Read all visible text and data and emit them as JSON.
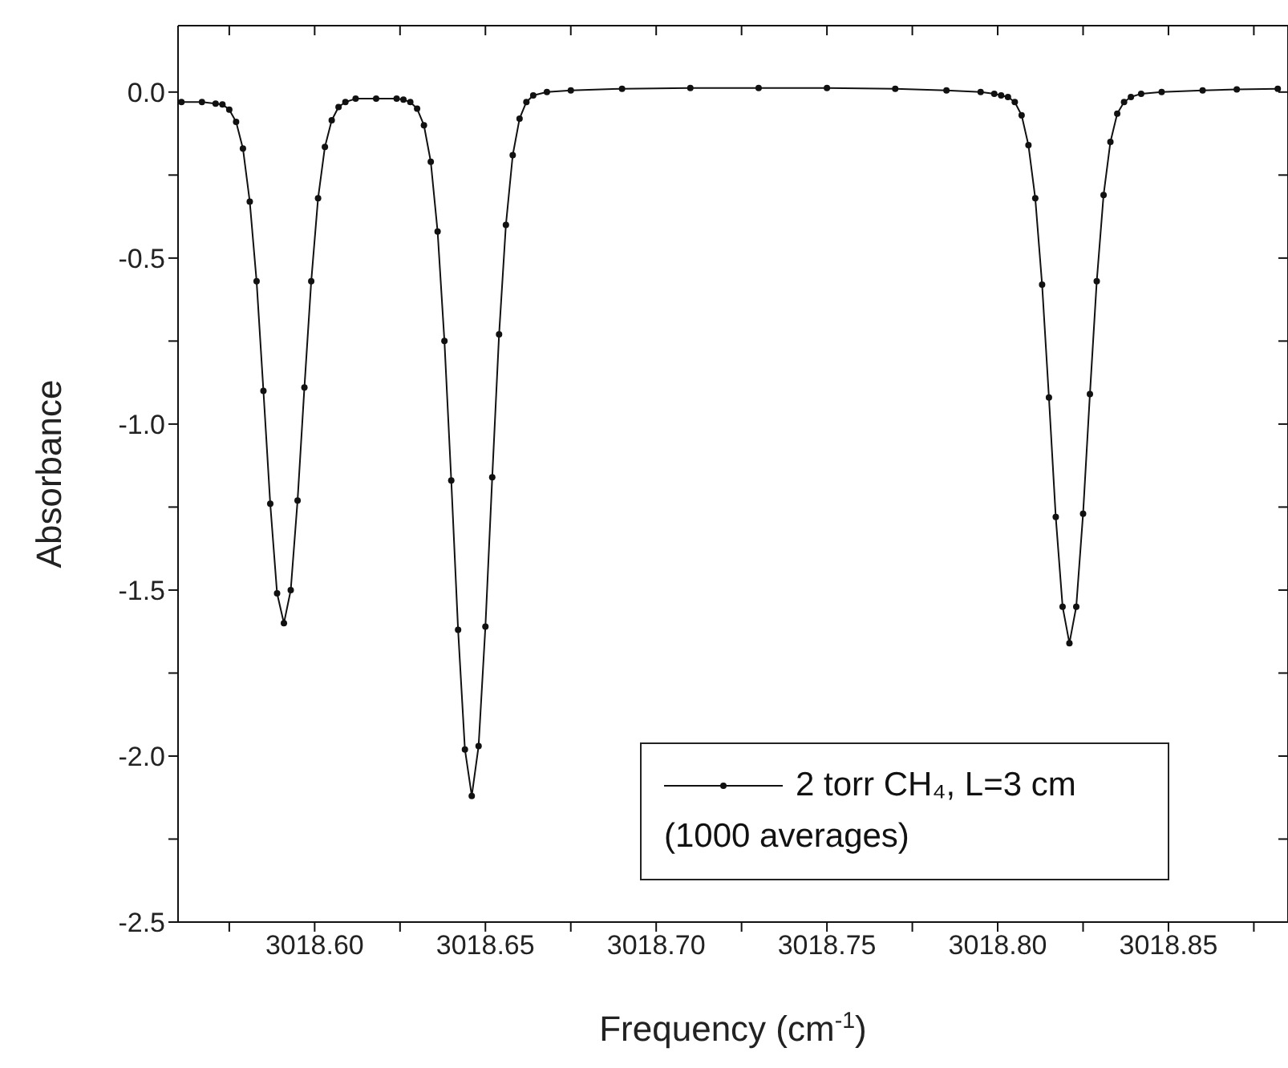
{
  "chart_data": {
    "type": "line",
    "xlabel": "Frequency (cm$^{-1}$)",
    "ylabel": "Absorbance",
    "xlim": [
      3018.56,
      3018.885
    ],
    "xticks": [
      {
        "value": 3018.6,
        "label": "3018.60"
      },
      {
        "value": 3018.65,
        "label": "3018.65"
      },
      {
        "value": 3018.7,
        "label": "3018.70"
      },
      {
        "value": 3018.75,
        "label": "3018.75"
      },
      {
        "value": 3018.8,
        "label": "3018.80"
      },
      {
        "value": 3018.85,
        "label": "3018.85"
      },
      {
        "value": 3018.575,
        "label": null
      },
      {
        "value": 3018.625,
        "label": null
      },
      {
        "value": 3018.675,
        "label": null
      },
      {
        "value": 3018.725,
        "label": null
      },
      {
        "value": 3018.775,
        "label": null
      },
      {
        "value": 3018.825,
        "label": null
      },
      {
        "value": 3018.875,
        "label": null
      }
    ],
    "ylim": [
      -2.5,
      0.2
    ],
    "yticks": [
      {
        "value": 0,
        "label": "0.0"
      },
      {
        "value": -0.5,
        "label": "-0.5"
      },
      {
        "value": -1,
        "label": "-1.0"
      },
      {
        "value": -1.5,
        "label": "-1.5"
      },
      {
        "value": -2,
        "label": "-2.0"
      },
      {
        "value": -2.5,
        "label": "-2.5"
      },
      {
        "value": -0.25,
        "label": null
      },
      {
        "value": -0.75,
        "label": null
      },
      {
        "value": -1.25,
        "label": null
      },
      {
        "value": -1.75,
        "label": null
      },
      {
        "value": -2.25,
        "label": null
      }
    ],
    "grid": false,
    "legend": "bottom right",
    "marker": "circle",
    "line_style": "solid",
    "series": [
      {
        "name": "2 torr CH₄, L=3 cm (1000 averages)",
        "color": "#111111",
        "x": [
          3018.561,
          3018.567,
          3018.571,
          3018.573,
          3018.575,
          3018.577,
          3018.579,
          3018.581,
          3018.583,
          3018.585,
          3018.587,
          3018.589,
          3018.591,
          3018.593,
          3018.595,
          3018.597,
          3018.599,
          3018.601,
          3018.603,
          3018.605,
          3018.607,
          3018.609,
          3018.612,
          3018.618,
          3018.624,
          3018.626,
          3018.628,
          3018.63,
          3018.632,
          3018.634,
          3018.636,
          3018.638,
          3018.64,
          3018.642,
          3018.644,
          3018.646,
          3018.648,
          3018.65,
          3018.652,
          3018.654,
          3018.656,
          3018.658,
          3018.66,
          3018.662,
          3018.664,
          3018.668,
          3018.675,
          3018.69,
          3018.71,
          3018.73,
          3018.75,
          3018.77,
          3018.785,
          3018.795,
          3018.799,
          3018.801,
          3018.803,
          3018.805,
          3018.807,
          3018.809,
          3018.811,
          3018.813,
          3018.815,
          3018.817,
          3018.819,
          3018.821,
          3018.823,
          3018.825,
          3018.827,
          3018.829,
          3018.831,
          3018.833,
          3018.835,
          3018.837,
          3018.839,
          3018.842,
          3018.848,
          3018.86,
          3018.87,
          3018.882
        ],
        "values": [
          -0.03,
          -0.03,
          -0.035,
          -0.037,
          -0.053,
          -0.09,
          -0.17,
          -0.33,
          -0.57,
          -0.9,
          -1.24,
          -1.51,
          -1.6,
          -1.5,
          -1.23,
          -0.89,
          -0.57,
          -0.32,
          -0.165,
          -0.085,
          -0.045,
          -0.03,
          -0.02,
          -0.02,
          -0.02,
          -0.023,
          -0.03,
          -0.05,
          -0.1,
          -0.21,
          -0.42,
          -0.75,
          -1.17,
          -1.62,
          -1.98,
          -2.12,
          -1.97,
          -1.61,
          -1.16,
          -0.73,
          -0.4,
          -0.19,
          -0.08,
          -0.03,
          -0.01,
          0,
          0.005,
          0.01,
          0.012,
          0.012,
          0.012,
          0.01,
          0.005,
          0,
          -0.005,
          -0.01,
          -0.015,
          -0.03,
          -0.07,
          -0.16,
          -0.32,
          -0.58,
          -0.92,
          -1.28,
          -1.55,
          -1.66,
          -1.55,
          -1.27,
          -0.91,
          -0.57,
          -0.31,
          -0.15,
          -0.065,
          -0.03,
          -0.015,
          -0.005,
          0,
          0.005,
          0.008,
          0.01
        ]
      }
    ]
  }
}
